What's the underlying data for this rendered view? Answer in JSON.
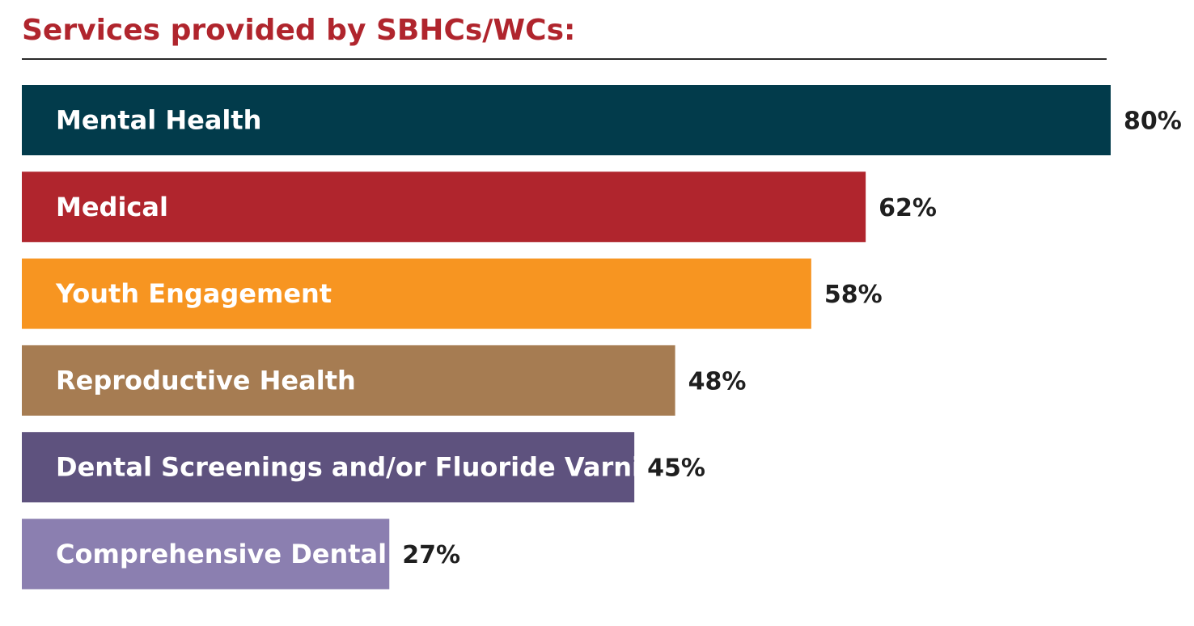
{
  "chart_data": {
    "type": "bar",
    "orientation": "horizontal",
    "title": "Services provided by SBHCs/WCs:",
    "categories": [
      "Mental Health",
      "Medical",
      "Youth Engagement",
      "Reproductive Health",
      "Dental Screenings and/or Fluoride Varnish",
      "Comprehensive Dental Care"
    ],
    "values": [
      80,
      62,
      58,
      48,
      45,
      27
    ],
    "value_labels": [
      "80%",
      "62%",
      "58%",
      "48%",
      "45%",
      "27%"
    ],
    "colors": [
      "#023b4b",
      "#b0252d",
      "#f79521",
      "#a67c52",
      "#5e527e",
      "#8b7fb0"
    ],
    "xlim": [
      0,
      80
    ],
    "grid": false,
    "legend": "none"
  }
}
